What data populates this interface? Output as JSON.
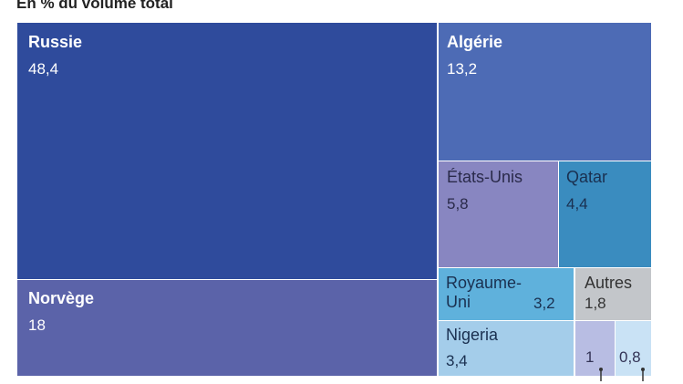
{
  "subtitle": "En % du volume total",
  "chart_data": {
    "type": "treemap",
    "unit": "%",
    "items": [
      {
        "name": "Russie",
        "value": 48.4,
        "label_value": "48,4",
        "color": "#2f4b9c",
        "text_color": "#ffffff"
      },
      {
        "name": "Norvège",
        "value": 18,
        "label_value": "18",
        "color": "#5b63a9",
        "text_color": "#ffffff"
      },
      {
        "name": "Algérie",
        "value": 13.2,
        "label_value": "13,2",
        "color": "#4d6bb5",
        "text_color": "#ffffff"
      },
      {
        "name": "États-Unis",
        "value": 5.8,
        "label_value": "5,8",
        "color": "#8886c1",
        "text_color": "#2a2a4a"
      },
      {
        "name": "Qatar",
        "value": 4.4,
        "label_value": "4,4",
        "color": "#3a8cbf",
        "text_color": "#1a3050"
      },
      {
        "name": "Royaume-\nUni",
        "value": 3.2,
        "label_value": "3,2",
        "color": "#5fb1dc",
        "text_color": "#1a3050"
      },
      {
        "name": "Autres",
        "value": 1.8,
        "label_value": "1,8",
        "color": "#c3c6ca",
        "text_color": "#333333"
      },
      {
        "name": "Nigeria",
        "value": 3.4,
        "label_value": "3,4",
        "color": "#a4cdea",
        "text_color": "#1a3050"
      },
      {
        "name": "",
        "value": 1,
        "label_value": "1",
        "color": "#b8bde3",
        "text_color": "#333355"
      },
      {
        "name": "",
        "value": 0.8,
        "label_value": "0,8",
        "color": "#c9e2f5",
        "text_color": "#333355"
      }
    ]
  }
}
